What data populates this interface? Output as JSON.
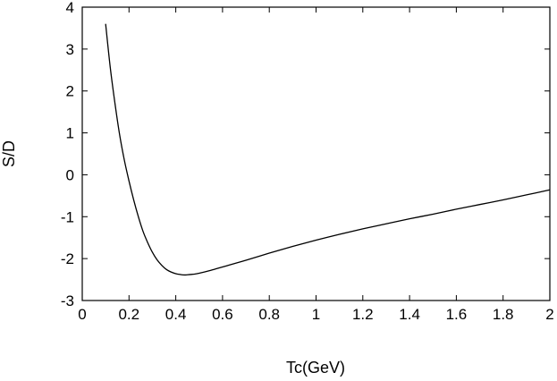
{
  "chart_data": {
    "type": "line",
    "title": "",
    "xlabel": "Tc(GeV)",
    "ylabel": "S/D",
    "xlim": [
      0,
      2
    ],
    "ylim": [
      -3,
      4
    ],
    "x_ticks": [
      "0",
      "0.2",
      "0.4",
      "0.6",
      "0.8",
      "1",
      "1.2",
      "1.4",
      "1.6",
      "1.8",
      "2"
    ],
    "y_ticks": [
      "-3",
      "-2",
      "-1",
      "0",
      "1",
      "2",
      "3",
      "4"
    ],
    "grid": false,
    "legend": "none",
    "series": [
      {
        "color": "#000000",
        "x": [
          0.1,
          0.12,
          0.14,
          0.16,
          0.18,
          0.2,
          0.22,
          0.24,
          0.26,
          0.28,
          0.3,
          0.32,
          0.34,
          0.36,
          0.38,
          0.4,
          0.42,
          0.44,
          0.46,
          0.48,
          0.5,
          0.55,
          0.6,
          0.65,
          0.7,
          0.8,
          0.9,
          1.0,
          1.1,
          1.2,
          1.3,
          1.4,
          1.5,
          1.6,
          1.7,
          1.8,
          1.9,
          2.0
        ],
        "y": [
          3.6,
          2.55,
          1.7,
          0.95,
          0.35,
          -0.15,
          -0.6,
          -1.0,
          -1.35,
          -1.62,
          -1.85,
          -2.03,
          -2.16,
          -2.26,
          -2.32,
          -2.36,
          -2.38,
          -2.39,
          -2.38,
          -2.37,
          -2.35,
          -2.28,
          -2.2,
          -2.12,
          -2.04,
          -1.87,
          -1.71,
          -1.56,
          -1.42,
          -1.29,
          -1.17,
          -1.05,
          -0.94,
          -0.82,
          -0.71,
          -0.6,
          -0.48,
          -0.36
        ]
      }
    ]
  }
}
